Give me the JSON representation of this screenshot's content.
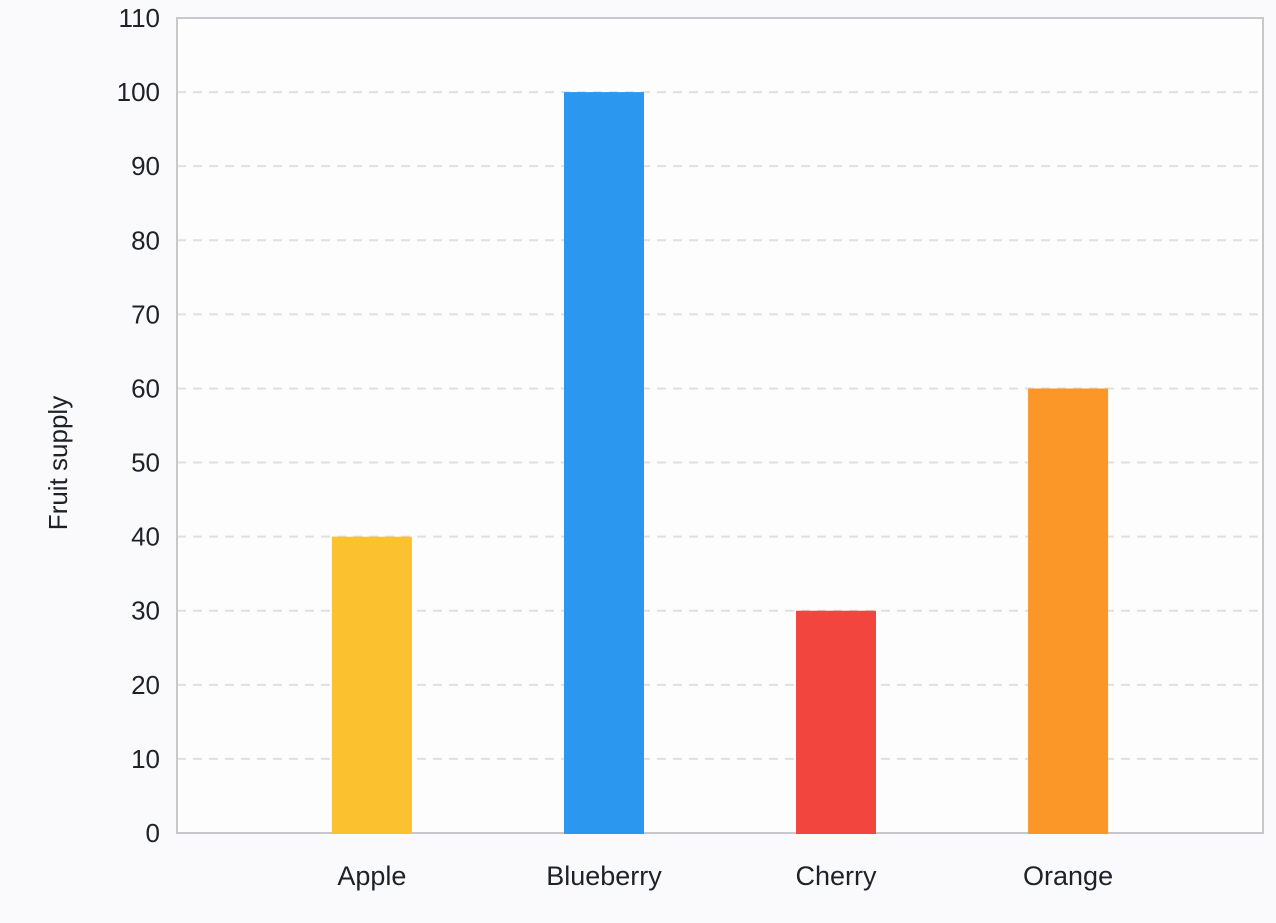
{
  "chart_data": {
    "type": "bar",
    "categories": [
      "Apple",
      "Blueberry",
      "Cherry",
      "Orange"
    ],
    "values": [
      40,
      100,
      30,
      60
    ],
    "bar_colors": [
      "#FCC12F",
      "#2B97EF",
      "#F2453D",
      "#FB9729"
    ],
    "title": "",
    "xlabel": "",
    "ylabel": "Fruit supply",
    "ylim": [
      0,
      110
    ],
    "ytick_step": 10,
    "yticks": [
      0,
      10,
      20,
      30,
      40,
      50,
      60,
      70,
      80,
      90,
      100,
      110
    ],
    "grid": true,
    "gridline_style": "dashed",
    "legend_position": "none",
    "colors": {
      "grid": "#E0E0E4",
      "axis_border": "#C7C7CC",
      "text": "#1F2128",
      "plot_background": "#FDFDFE",
      "page_background": "#FAFAFC"
    }
  }
}
